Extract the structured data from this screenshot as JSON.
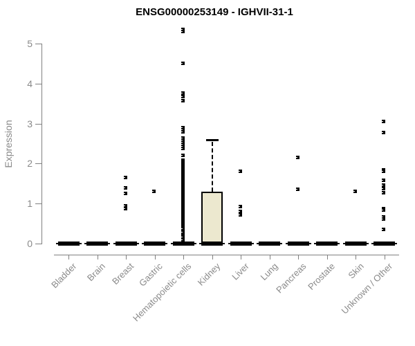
{
  "chart_data": {
    "type": "boxplot",
    "title": "ENSG00000253149 - IGHVII-31-1",
    "ylabel": "Expression",
    "xlabel": "",
    "ylim": [
      0,
      5.45
    ],
    "yticks": [
      0,
      1,
      2,
      3,
      4,
      5
    ],
    "grid": "off",
    "legend": "none",
    "colors": {
      "box_fill": "#ECE8CF",
      "box_stroke": "#000000",
      "axis": "#808080",
      "tick_label": "#8a8a8a",
      "title": "#000000"
    },
    "categories": [
      "Bladder",
      "Brain",
      "Breast",
      "Gastric",
      "Hematopoietic cells",
      "Kidney",
      "Liver",
      "Lung",
      "Pancreas",
      "Prostate",
      "Skin",
      "Unknown / Other"
    ],
    "series": [
      {
        "name": "Bladder",
        "q1": 0,
        "median": 0,
        "q3": 0,
        "whisker_low": 0,
        "whisker_high": 0,
        "outliers": []
      },
      {
        "name": "Brain",
        "q1": 0,
        "median": 0,
        "q3": 0,
        "whisker_low": 0,
        "whisker_high": 0,
        "outliers": []
      },
      {
        "name": "Breast",
        "q1": 0,
        "median": 0,
        "q3": 0,
        "whisker_low": 0,
        "whisker_high": 0,
        "outliers": [
          1.65,
          1.4,
          1.25,
          0.95,
          0.87
        ]
      },
      {
        "name": "Gastric",
        "q1": 0,
        "median": 0,
        "q3": 0,
        "whisker_low": 0,
        "whisker_high": 0,
        "outliers": [
          1.3
        ]
      },
      {
        "name": "Hematopoietic cells",
        "q1": 0,
        "median": 0,
        "q3": 0,
        "whisker_low": 0,
        "whisker_high": 0,
        "outliers": [
          5.36,
          5.3,
          4.5,
          3.76,
          3.67,
          3.58,
          2.9,
          2.85,
          2.8,
          2.63,
          2.58,
          2.53,
          2.48,
          2.43,
          2.38,
          2.2,
          2.08,
          2.05,
          2.02,
          1.99,
          1.96,
          1.93,
          1.9,
          1.87,
          1.84,
          1.81,
          1.78,
          1.75,
          1.72,
          1.69,
          1.66,
          1.63,
          1.6,
          1.57,
          1.54,
          1.51,
          1.48,
          1.45,
          1.42,
          1.39,
          1.36,
          1.33,
          1.3,
          1.27,
          1.24,
          1.21,
          1.18,
          1.15,
          1.12,
          1.09,
          1.06,
          1.03,
          1.0,
          0.97,
          0.94,
          0.91,
          0.88,
          0.85,
          0.82,
          0.79,
          0.76,
          0.73,
          0.7,
          0.67,
          0.64,
          0.61,
          0.58,
          0.55,
          0.52,
          0.49,
          0.46,
          0.43,
          0.4,
          0.38,
          0.32,
          0.28,
          0.24,
          0.2,
          0.16,
          0.12,
          0.09
        ]
      },
      {
        "name": "Kidney",
        "q1": 0,
        "median": 0,
        "q3": 1.3,
        "whisker_low": 0,
        "whisker_high": 2.6,
        "outliers": []
      },
      {
        "name": "Liver",
        "q1": 0,
        "median": 0,
        "q3": 0,
        "whisker_low": 0,
        "whisker_high": 0,
        "outliers": [
          1.8,
          0.93,
          0.81,
          0.71
        ]
      },
      {
        "name": "Lung",
        "q1": 0,
        "median": 0,
        "q3": 0,
        "whisker_low": 0,
        "whisker_high": 0,
        "outliers": []
      },
      {
        "name": "Pancreas",
        "q1": 0,
        "median": 0,
        "q3": 0,
        "whisker_low": 0,
        "whisker_high": 0,
        "outliers": [
          2.16,
          1.35
        ]
      },
      {
        "name": "Prostate",
        "q1": 0,
        "median": 0,
        "q3": 0,
        "whisker_low": 0,
        "whisker_high": 0,
        "outliers": []
      },
      {
        "name": "Skin",
        "q1": 0,
        "median": 0,
        "q3": 0,
        "whisker_low": 0,
        "whisker_high": 0,
        "outliers": [
          1.31
        ]
      },
      {
        "name": "Unknown / Other",
        "q1": 0,
        "median": 0,
        "q3": 0,
        "whisker_low": 0,
        "whisker_high": 0,
        "outliers": [
          3.05,
          2.78,
          1.85,
          1.8,
          1.59,
          1.47,
          1.37,
          1.28,
          0.88,
          0.84,
          0.66,
          0.62,
          0.35
        ]
      }
    ]
  }
}
